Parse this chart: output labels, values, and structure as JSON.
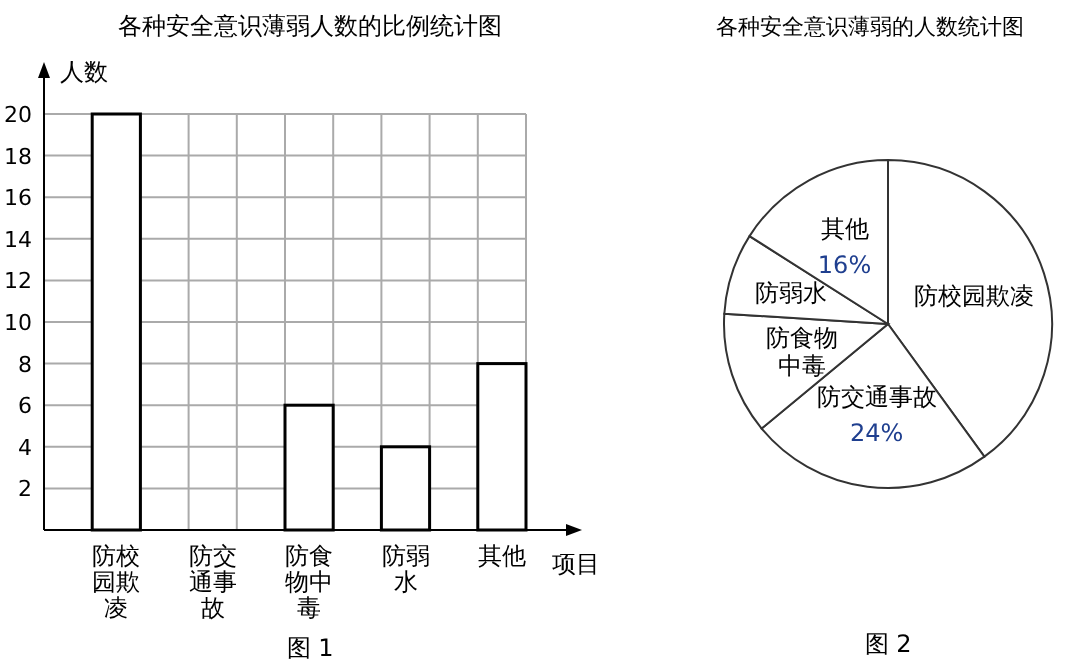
{
  "chart_data": [
    {
      "type": "bar",
      "title": "各种安全意识薄弱人数的比例统计图",
      "ylabel": "人数",
      "xlabel": "项目",
      "categories": [
        "防校园欺凌",
        "防交通事故",
        "防食物中毒",
        "防弱水",
        "其他"
      ],
      "series": [
        {
          "color": "#ffffff",
          "values": [
            20,
            null,
            6,
            4,
            8
          ]
        }
      ],
      "ylim": [
        0,
        20
      ],
      "yticks": [
        2,
        4,
        6,
        8,
        10,
        12,
        14,
        16,
        18,
        20
      ],
      "grid": true,
      "annotations": [
        "图 1"
      ]
    },
    {
      "type": "pie",
      "title": "各种安全意识薄弱的人数统计图",
      "categories": [
        "防校园欺凌",
        "防交通事故",
        "防食物中毒",
        "防弱水",
        "其他"
      ],
      "values": [
        40,
        24,
        12,
        8,
        16
      ],
      "colors": [
        "#ffffff",
        "#ffffff",
        "#ffffff",
        "#ffffff",
        "#ffffff"
      ],
      "value_labels": [
        null,
        "24%",
        null,
        null,
        "16%"
      ],
      "annotations": [
        "图 2"
      ]
    }
  ]
}
